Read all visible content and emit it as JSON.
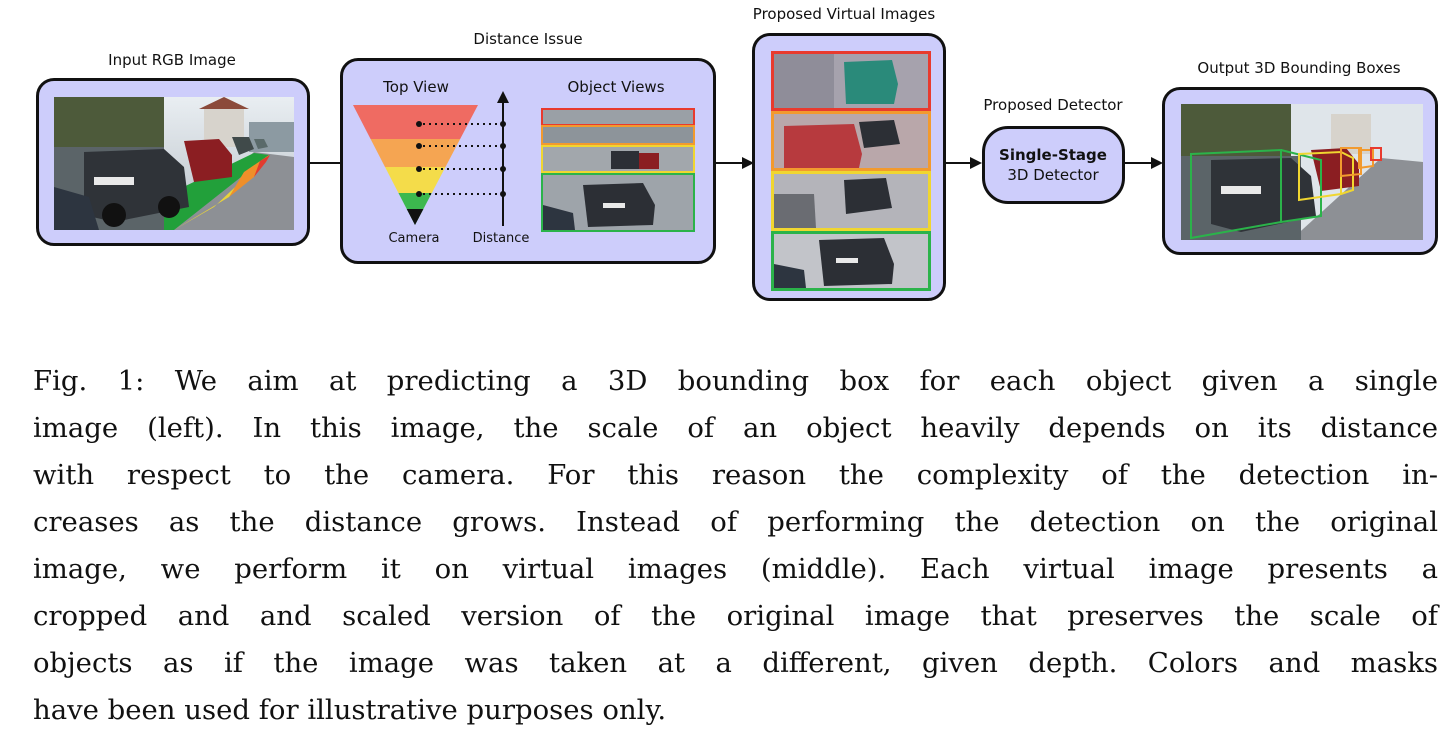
{
  "figure": {
    "stage1_title": "Input RGB Image",
    "stage2_title": "Distance Issue",
    "stage2_top_view": "Top View",
    "stage2_object_views": "Object Views",
    "stage2_camera": "Camera",
    "stage2_distance": "Distance",
    "stage3_title": "Proposed Virtual Images",
    "stage4_title": "Proposed Detector",
    "stage4_line1": "Single-Stage",
    "stage4_line2": "3D Detector",
    "stage5_title": "Output 3D Bounding Boxes",
    "colors": {
      "box_fill": "#cdcdfb",
      "red": "#e83a2e",
      "orange": "#f29a2e",
      "yellow": "#f0d630",
      "green": "#2bb34a"
    }
  },
  "caption": {
    "lines": [
      "Fig. 1: We aim at predicting a 3D bounding box for each object given a single",
      "image (left). In this image, the scale of an object heavily depends on its distance",
      "with respect to the camera. For this reason the complexity of the detection in-",
      "creases as the distance grows. Instead of performing the detection on the original",
      "image, we perform it on virtual images (middle). Each virtual image presents a",
      "cropped and and scaled version of the original image that preserves the scale of",
      "objects as if the image was taken at a different, given depth. Colors and masks",
      "have been used for illustrative purposes only."
    ]
  }
}
